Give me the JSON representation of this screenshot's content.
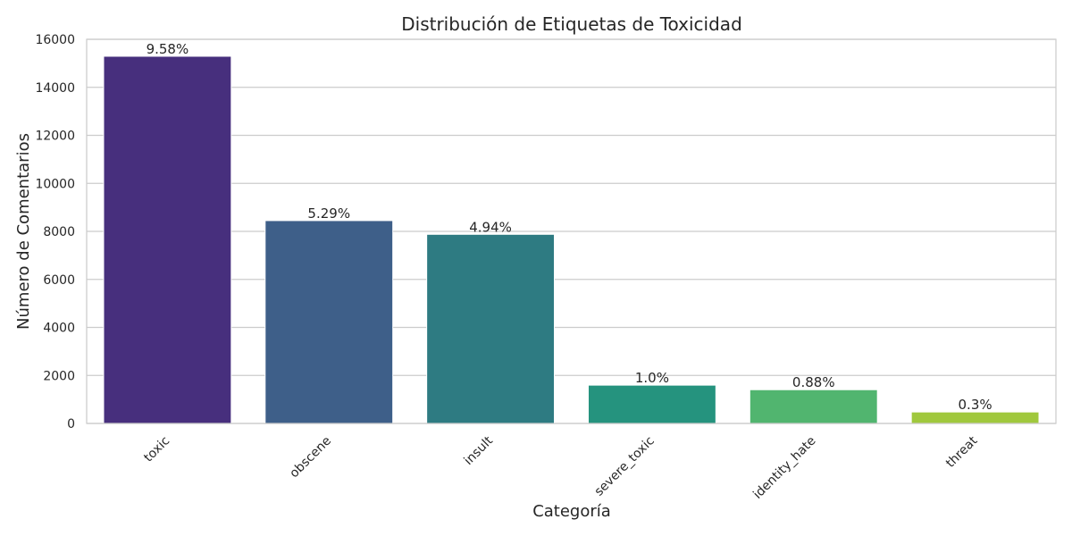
{
  "chart_data": {
    "type": "bar",
    "title": "Distribución de Etiquetas de Toxicidad",
    "xlabel": "Categoría",
    "ylabel": "Número de Comentarios",
    "categories": [
      "toxic",
      "obscene",
      "insult",
      "severe_toxic",
      "identity_hate",
      "threat"
    ],
    "values": [
      15294,
      8449,
      7877,
      1595,
      1405,
      478
    ],
    "data_labels": [
      "9.58%",
      "5.29%",
      "4.94%",
      "1.0%",
      "0.88%",
      "0.3%"
    ],
    "colors": [
      "#472f7d",
      "#3e5f89",
      "#2e7b82",
      "#25937e",
      "#51b56f",
      "#a0c83d"
    ],
    "ylim": [
      0,
      16000
    ],
    "yticks": [
      0,
      2000,
      4000,
      6000,
      8000,
      10000,
      12000,
      14000,
      16000
    ],
    "grid": "horizontal",
    "legend": "none"
  }
}
